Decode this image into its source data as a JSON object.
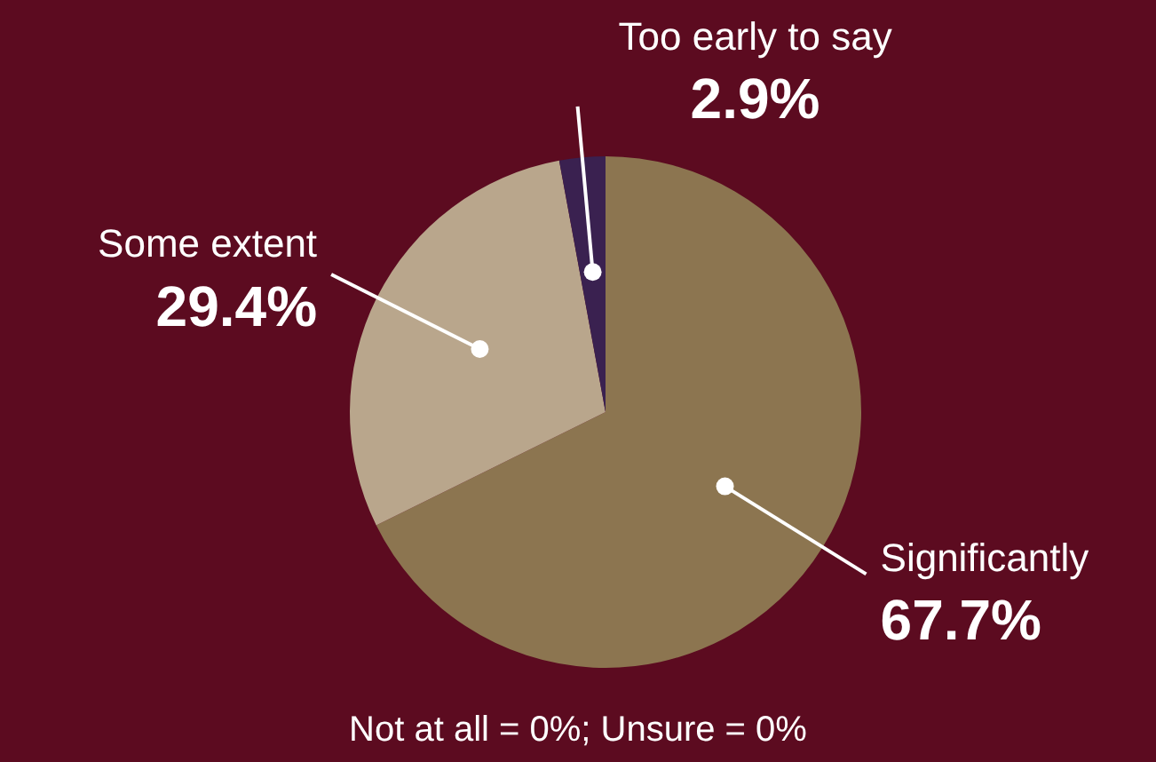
{
  "chart_data": {
    "type": "pie",
    "categories": [
      "Significantly",
      "Some extent",
      "Too early to say"
    ],
    "values": [
      67.7,
      29.4,
      2.9
    ],
    "colors": [
      "#8c7550",
      "#b9a68c",
      "#3a2150"
    ],
    "value_labels": [
      "67.7%",
      "29.4%",
      "2.9%"
    ],
    "annotations": [
      "Not at all = 0%; Unsure = 0%"
    ],
    "legend": false
  }
}
